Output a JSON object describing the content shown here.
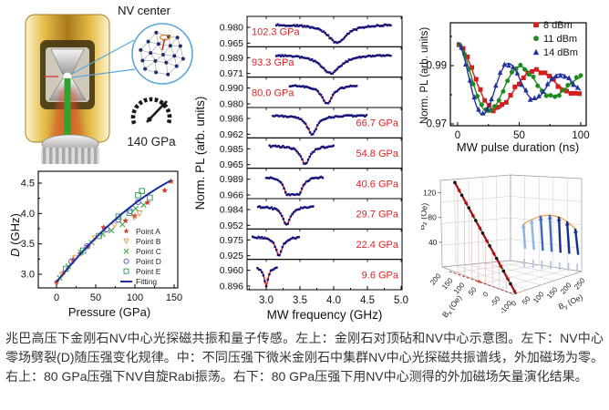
{
  "caption": {
    "text": "兆巴高压下金刚石NV中心光探磁共振和量子传感。左上：金刚石对顶砧和NV中心示意图。左下：NV中心零场劈裂(D)随压强变化规律。中：不同压强下微米金刚石中集群NV中心光探磁共振谱线，外加磁场为零。右上：80 GPa压强下NV自旋Rabi振荡。右下：80 GPa压强下用NV中心测得的外加磁场矢量演化结果。"
  },
  "schematic": {
    "nv_center_label": "NV center",
    "gauge_label": "140 GPa"
  },
  "colors": {
    "odmr_dots": "#14147d",
    "odmr_fit": "#e02020",
    "pressure_label": "#e02020",
    "fitting_line": "#1c2f9e"
  },
  "chart_data": [
    {
      "id": "dvsp",
      "type": "scatter",
      "xlabel": "Pressure  (GPa)",
      "ylabel": "D (GHz)",
      "xticks": [
        0,
        50,
        100,
        150
      ],
      "yticks": [
        3.0,
        3.5,
        4.0,
        4.5
      ],
      "xlim": [
        -23,
        155
      ],
      "ylim": [
        2.78,
        4.7
      ],
      "series": [
        {
          "name": "Point A",
          "marker": "star",
          "color": "#d93a2b",
          "points": [
            [
              0,
              2.87
            ],
            [
              9,
              3.03
            ],
            [
              21,
              3.24
            ],
            [
              30,
              3.34
            ],
            [
              40,
              3.46
            ],
            [
              60,
              3.77
            ],
            [
              88,
              3.88
            ],
            [
              100,
              3.96
            ],
            [
              116,
              4.18
            ],
            [
              138,
              4.38
            ],
            [
              146,
              4.53
            ]
          ]
        },
        {
          "name": "Point B",
          "marker": "triangle-down",
          "color": "#e0a25e",
          "points": [
            [
              7,
              2.99
            ],
            [
              24,
              3.27
            ],
            [
              49,
              3.59
            ],
            [
              74,
              3.81
            ],
            [
              99,
              3.94
            ],
            [
              106,
              4.0
            ]
          ]
        },
        {
          "name": "Point C",
          "marker": "x",
          "color": "#47b051",
          "points": [
            [
              4,
              2.94
            ],
            [
              15,
              3.13
            ],
            [
              31,
              3.36
            ],
            [
              45,
              3.52
            ],
            [
              59,
              3.66
            ],
            [
              70,
              3.72
            ],
            [
              84,
              3.82
            ],
            [
              101,
              4.08
            ],
            [
              111,
              4.14
            ]
          ]
        },
        {
          "name": "Point D",
          "marker": "circle",
          "color": "#5560c9",
          "points": [
            [
              19,
              3.21
            ],
            [
              39,
              3.46
            ],
            [
              64,
              3.74
            ],
            [
              79,
              3.9
            ],
            [
              94,
              4.04
            ],
            [
              104,
              4.19
            ]
          ]
        },
        {
          "name": "Point E",
          "marker": "square",
          "color": "#3f9e63",
          "points": [
            [
              12,
              3.09
            ],
            [
              34,
              3.39
            ],
            [
              54,
              3.63
            ],
            [
              79,
              3.95
            ],
            [
              93,
              4.01
            ],
            [
              104,
              4.3
            ],
            [
              109,
              4.37
            ],
            [
              119,
              4.26
            ]
          ]
        },
        {
          "name": "Fitting",
          "marker": "line",
          "color": "#1c2f9e",
          "fit": {
            "a": 2.87,
            "b": 0.0162,
            "c": -3.25e-05,
            "pmax": 146
          }
        }
      ]
    },
    {
      "id": "odmr",
      "type": "line-stack",
      "xlabel": "MW frequency (GHz)",
      "ylabel": "Norm. PL (arb. units)",
      "xticks": [
        3.0,
        3.5,
        4.0,
        4.5,
        5.0
      ],
      "xlim": [
        2.72,
        5.01
      ],
      "panels": [
        {
          "pressure": "102.3 GPa",
          "side": "left",
          "ticks": [
            "0.980",
            "0.965"
          ],
          "dips": [
            [
              4.05,
              0.17
            ]
          ],
          "range": [
            3.15,
            4.85
          ]
        },
        {
          "pressure": "93.3 GPa",
          "side": "left",
          "ticks": [
            "0.989",
            "0.971"
          ],
          "dips": [
            [
              3.96,
              0.18
            ]
          ],
          "range": [
            3.15,
            4.85
          ]
        },
        {
          "pressure": "80.0 GPa",
          "side": "left",
          "ticks": [
            "0.990",
            "0.980"
          ],
          "dips": [
            [
              3.9,
              0.1
            ]
          ],
          "range": [
            3.35,
            4.35
          ]
        },
        {
          "pressure": "66.7 GPa",
          "side": "right",
          "ticks": [
            "0.986",
            "0.962"
          ],
          "dips": [
            [
              3.68,
              0.09
            ]
          ],
          "range": [
            3.1,
            4.5
          ]
        },
        {
          "pressure": "54.8 GPa",
          "side": "right",
          "ticks": [
            "0.985",
            "0.965"
          ],
          "dips": [
            [
              3.58,
              0.08
            ]
          ],
          "range": [
            3.05,
            4.0
          ]
        },
        {
          "pressure": "40.6 GPa",
          "side": "right",
          "ticks": [
            "0.989",
            "0.966"
          ],
          "dips": [
            [
              3.33,
              0.07
            ],
            [
              3.47,
              0.07
            ]
          ],
          "range": [
            3.0,
            3.85
          ]
        },
        {
          "pressure": "29.7 GPa",
          "side": "right",
          "ticks": [
            "0.984",
            "0.952"
          ],
          "dips": [
            [
              3.3,
              0.07
            ]
          ],
          "range": [
            2.88,
            3.7
          ]
        },
        {
          "pressure": "22.4 GPa",
          "side": "right",
          "ticks": [
            "0.975",
            "0.925"
          ],
          "dips": [
            [
              3.19,
              0.06
            ]
          ],
          "range": [
            2.8,
            3.5
          ]
        },
        {
          "pressure": "9.6 GPa",
          "side": "right",
          "ticks": [
            "0.960",
            "0.896"
          ],
          "dips": [
            [
              3.0,
              0.035
            ]
          ],
          "range": [
            2.87,
            3.16
          ]
        }
      ]
    },
    {
      "id": "rabi",
      "type": "line",
      "xlabel": "MW pulse duration (ns)",
      "ylabel": "Norm. PL (arb. units)",
      "xticks": [
        0,
        50,
        100
      ],
      "yticks": [
        "0.99",
        "0.97"
      ],
      "xlim": [
        -5,
        105
      ],
      "ylim": [
        0.969,
        1.005
      ],
      "model": {
        "base": 0.9835,
        "amp": 0.0145,
        "tau": 60
      },
      "series": [
        {
          "name": "8 dBm",
          "color": "#d21f1f",
          "marker": "square",
          "period": 65
        },
        {
          "name": "11 dBm",
          "color": "#1e8a1e",
          "marker": "circle",
          "period": 52
        },
        {
          "name": "14 dBm",
          "color": "#23329e",
          "marker": "triangle",
          "period": 42
        }
      ]
    },
    {
      "id": "field3d",
      "type": "3d-vectors",
      "axes": {
        "z": {
          "label": "Bz (Oe)",
          "ticks": [
            40,
            80,
            120
          ]
        },
        "x": {
          "label": "Bx (Oe)",
          "ticks": [
            200,
            150,
            100,
            50,
            0,
            -50,
            -100
          ]
        },
        "y": {
          "label": "By (Oe)",
          "ticks": [
            0,
            50,
            100,
            150,
            200,
            250
          ]
        }
      },
      "red_vectors": {
        "color": "#a50f0f",
        "count": 9,
        "guide_color": "#39b54a"
      },
      "blue_vectors": {
        "color": "#162f8f",
        "count": 7,
        "tip_curve_color": "#e8a13c"
      },
      "floor_projection_color": "#c23b2e"
    }
  ]
}
